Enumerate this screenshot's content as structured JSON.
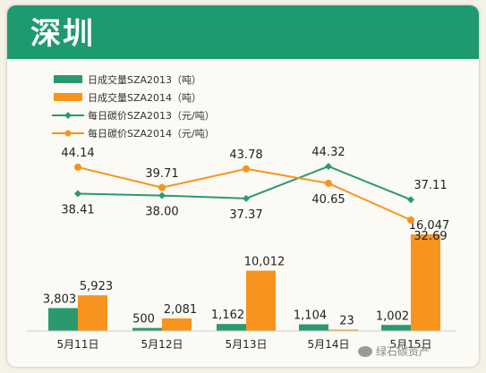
{
  "title": "深圳",
  "watermark": "绿石碳资产",
  "colors": {
    "header": "#1e9a6f",
    "bar2013": "#2a9a6e",
    "bar2014": "#f7941d",
    "line2013": "#2a9a6e",
    "line2014": "#f7941d"
  },
  "chart_data": {
    "type": "bar",
    "categories": [
      "5月11日",
      "5月12日",
      "5月13日",
      "5月14日",
      "5月15日"
    ],
    "series": [
      {
        "name": "日成交量SZA2013（吨）",
        "type": "bar",
        "values": [
          3803,
          500,
          1162,
          1104,
          1002
        ],
        "labels": [
          "3,803",
          "500",
          "1,162",
          "1,104",
          "1,002"
        ]
      },
      {
        "name": "日成交量SZA2014（吨）",
        "type": "bar",
        "values": [
          5923,
          2081,
          10012,
          23,
          16047
        ],
        "labels": [
          "5,923",
          "2,081",
          "10,012",
          "23",
          "16,047"
        ]
      },
      {
        "name": "每日碳价SZA2013（元/吨）",
        "type": "line",
        "values": [
          38.41,
          38.0,
          37.37,
          44.32,
          37.11
        ],
        "labels": [
          "38.41",
          "38.00",
          "37.37",
          "44.32",
          "37.11"
        ]
      },
      {
        "name": "每日碳价SZA2014（元/吨）",
        "type": "line",
        "values": [
          44.14,
          39.71,
          43.78,
          40.65,
          32.69
        ],
        "labels": [
          "44.14",
          "39.71",
          "43.78",
          "40.65",
          "32.69"
        ]
      }
    ],
    "grid": false,
    "legend": "top-left"
  }
}
